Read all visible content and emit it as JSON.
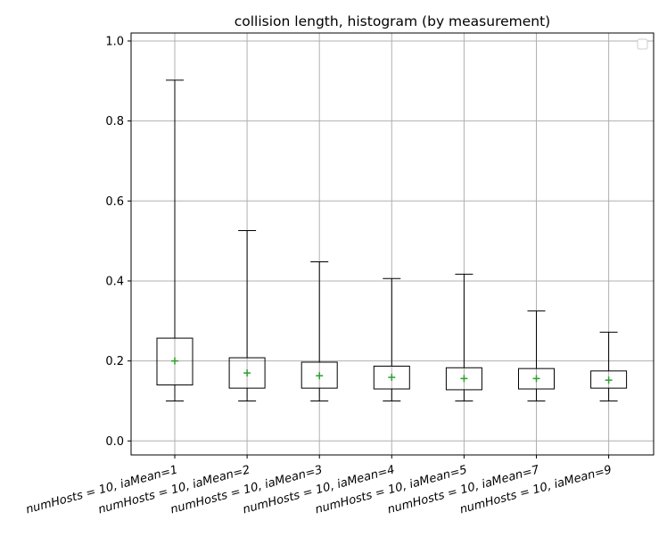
{
  "chart_data": {
    "type": "box",
    "title": "collision length, histogram (by measurement)",
    "xlabel": "",
    "ylabel": "",
    "ylim": [
      -0.035,
      1.02
    ],
    "yticks": [
      0.0,
      0.2,
      0.4,
      0.6,
      0.8,
      1.0
    ],
    "ytick_labels": [
      "0.0",
      "0.2",
      "0.4",
      "0.6",
      "0.8",
      "1.0"
    ],
    "grid": true,
    "legend": "top-right (empty)",
    "categories": [
      "numHosts = 10, iaMean=1",
      "numHosts = 10, iaMean=2",
      "numHosts = 10, iaMean=3",
      "numHosts = 10, iaMean=4",
      "numHosts = 10, iaMean=5",
      "numHosts = 10, iaMean=7",
      "numHosts = 10, iaMean=9"
    ],
    "boxes": [
      {
        "whislo": 0.1,
        "q1": 0.14,
        "q3": 0.257,
        "whishi": 0.902,
        "mean": 0.2
      },
      {
        "whislo": 0.1,
        "q1": 0.132,
        "q3": 0.208,
        "whishi": 0.526,
        "mean": 0.17
      },
      {
        "whislo": 0.1,
        "q1": 0.132,
        "q3": 0.197,
        "whishi": 0.448,
        "mean": 0.163
      },
      {
        "whislo": 0.1,
        "q1": 0.13,
        "q3": 0.187,
        "whishi": 0.406,
        "mean": 0.159
      },
      {
        "whislo": 0.1,
        "q1": 0.128,
        "q3": 0.183,
        "whishi": 0.417,
        "mean": 0.156
      },
      {
        "whislo": 0.1,
        "q1": 0.13,
        "q3": 0.181,
        "whishi": 0.325,
        "mean": 0.156
      },
      {
        "whislo": 0.1,
        "q1": 0.132,
        "q3": 0.175,
        "whishi": 0.272,
        "mean": 0.152
      }
    ],
    "colors": {
      "box": "#000000",
      "mean_marker": "#2ca02c",
      "grid": "#b0b0b0",
      "legend_border": "#cccccc"
    }
  }
}
